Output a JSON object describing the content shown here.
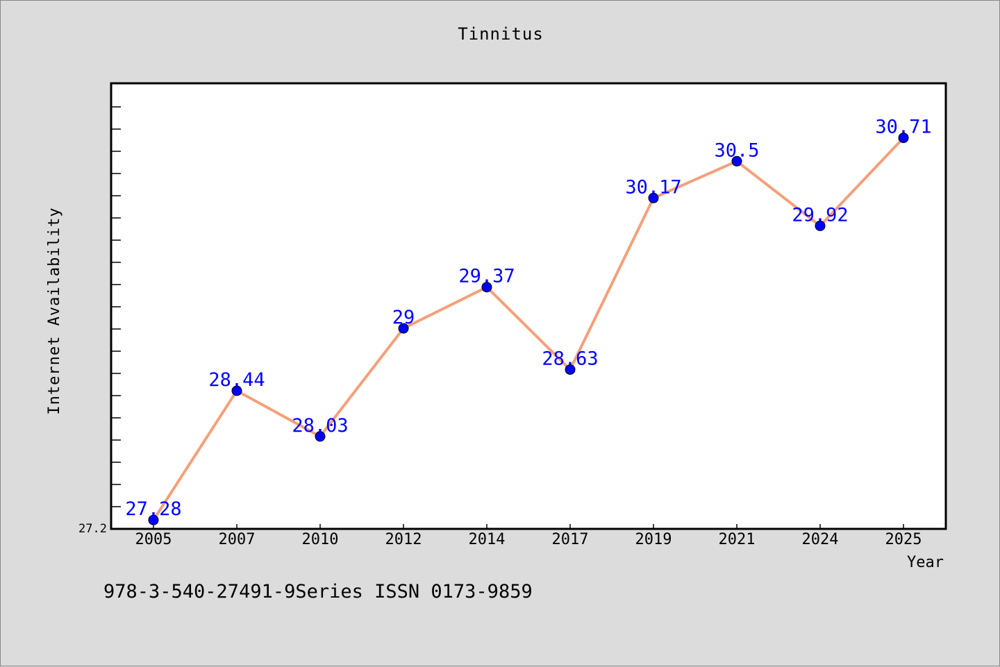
{
  "chart_data": {
    "type": "line",
    "title": "Tinnitus",
    "xlabel": "Year",
    "ylabel": "Internet Availability",
    "categories": [
      "2005",
      "2007",
      "2010",
      "2012",
      "2014",
      "2017",
      "2019",
      "2021",
      "2024",
      "2025"
    ],
    "values": [
      27.28,
      28.44,
      28.03,
      29,
      29.37,
      28.63,
      30.17,
      30.5,
      29.92,
      30.71
    ],
    "data_labels": [
      "27.28",
      "28.44",
      "28.03",
      "29",
      "29.37",
      "28.63",
      "30.17",
      "30.5",
      "29.92",
      "30.71"
    ],
    "y_tick_label": "27.2",
    "ylim": [
      27.2,
      31.2
    ],
    "grid": false,
    "line_color": "#f4a07a",
    "marker_color": "#0000ff",
    "label_color": "#0000ff"
  },
  "footer": "978-3-540-27491-9Series ISSN 0173-9859"
}
